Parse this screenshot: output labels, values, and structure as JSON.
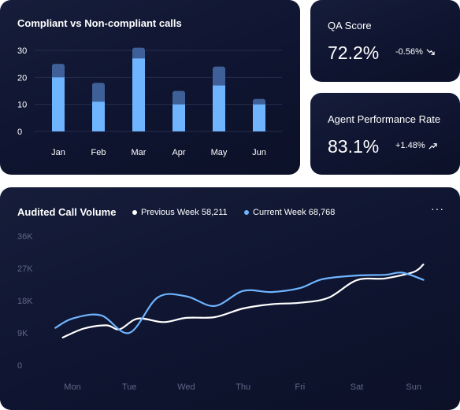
{
  "bar_card": {
    "title": "Compliant vs Non-compliant calls"
  },
  "qa_card": {
    "title": "QA Score",
    "value": "72.2%",
    "delta": "-0.56%",
    "trend_icon": "trend-down-icon"
  },
  "agent_card": {
    "title": "Agent Performance Rate",
    "value": "83.1%",
    "delta": "+1.48%",
    "trend_icon": "trend-up-icon"
  },
  "line_card": {
    "title": "Audited Call Volume",
    "legend_prev": "Previous Week 58,211",
    "legend_curr": "Current Week 68,768",
    "more": "···"
  },
  "colors": {
    "card_bg": "#12183a",
    "bar_compliant": "#6fb4ff",
    "bar_noncompliant": "#3f5f98",
    "line_current": "#6fb4ff",
    "line_previous": "#ffffff"
  },
  "chart_data": [
    {
      "type": "bar",
      "title": "Compliant vs Non-compliant calls",
      "categories": [
        "Jan",
        "Feb",
        "Mar",
        "Apr",
        "May",
        "Jun"
      ],
      "series": [
        {
          "values": [
            20,
            11,
            27,
            10,
            17,
            10
          ]
        },
        {
          "values": [
            5,
            7,
            4,
            5,
            7,
            2
          ]
        }
      ],
      "stacked": true,
      "yticks": [
        "0",
        "10",
        "20",
        "30"
      ],
      "ylim": [
        0,
        30
      ],
      "grid": true
    },
    {
      "type": "line",
      "title": "Audited Call Volume",
      "categories": [
        "Mon",
        "Tue",
        "Wed",
        "Thu",
        "Fri",
        "Sat",
        "Sun"
      ],
      "yticks": [
        "0",
        "9K",
        "18K",
        "27K",
        "36K"
      ],
      "ylim": [
        0,
        36000
      ],
      "series": [
        {
          "name": "Previous Week",
          "x": [
            -0.17,
            0.2,
            0.6,
            0.83,
            1.15,
            1.6,
            2.0,
            2.5,
            3.0,
            3.5,
            4.0,
            4.5,
            5.0,
            5.5,
            6.0,
            6.17
          ],
          "y": [
            7700,
            10200,
            11100,
            10000,
            13000,
            12000,
            13200,
            13400,
            15800,
            17000,
            17400,
            18800,
            23700,
            24200,
            26000,
            28100
          ]
        },
        {
          "name": "Current Week",
          "x": [
            -0.3,
            0.0,
            0.5,
            1.0,
            1.5,
            2.0,
            2.5,
            3.0,
            3.5,
            4.0,
            4.4,
            5.0,
            5.5,
            5.8,
            6.17
          ],
          "y": [
            10400,
            13000,
            13900,
            9000,
            18900,
            19200,
            16500,
            20700,
            20400,
            21500,
            24000,
            25000,
            25200,
            25800,
            23800
          ]
        }
      ]
    }
  ]
}
